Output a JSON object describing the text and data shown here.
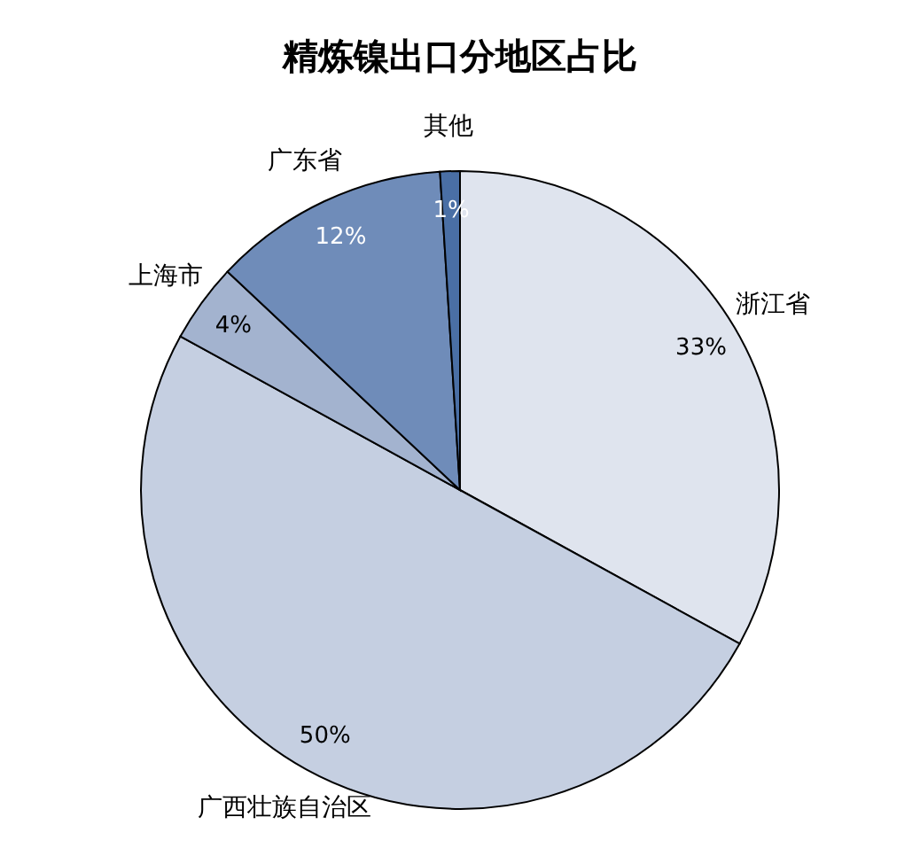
{
  "chart_data": {
    "type": "pie",
    "title": "精炼镍出口分地区占比",
    "categories": [
      "浙江省",
      "广西壮族自治区",
      "上海市",
      "广东省",
      "其他"
    ],
    "values": [
      33,
      50,
      4,
      12,
      1
    ],
    "value_labels": [
      "33%",
      "50%",
      "4%",
      "12%",
      "1%"
    ],
    "colors": [
      "#dfe4ee",
      "#c5cfe1",
      "#a3b3cf",
      "#6f8cb9",
      "#4a6fa5"
    ]
  }
}
